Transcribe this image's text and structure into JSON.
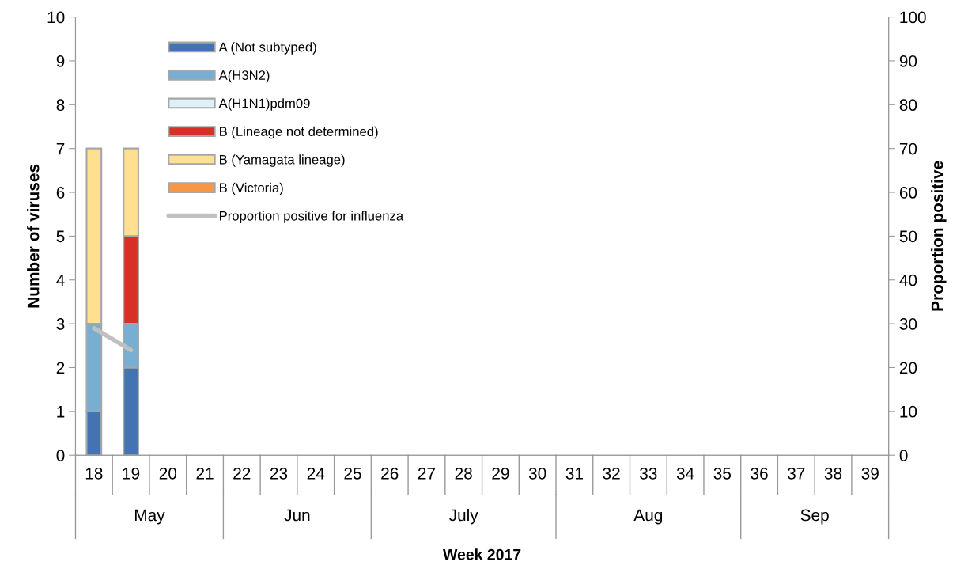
{
  "chart_data": {
    "type": "bar",
    "stacked": true,
    "xlabel": "Week 2017",
    "ylabel": "Number of viruses",
    "y2label": "Proportion positive",
    "categories": [
      "18",
      "19",
      "20",
      "21",
      "22",
      "23",
      "24",
      "25",
      "26",
      "27",
      "28",
      "29",
      "30",
      "31",
      "32",
      "33",
      "34",
      "35",
      "36",
      "37",
      "38",
      "39"
    ],
    "series": [
      {
        "name": "A (Not subtyped)",
        "color": "#4473b4",
        "values": [
          1,
          2,
          0,
          0,
          0,
          0,
          0,
          0,
          0,
          0,
          0,
          0,
          0,
          0,
          0,
          0,
          0,
          0,
          0,
          0,
          0,
          0
        ]
      },
      {
        "name": "A(H3N2)",
        "color": "#78aed2",
        "values": [
          2,
          1,
          0,
          0,
          0,
          0,
          0,
          0,
          0,
          0,
          0,
          0,
          0,
          0,
          0,
          0,
          0,
          0,
          0,
          0,
          0,
          0
        ]
      },
      {
        "name": "A(H1N1)pdm09",
        "color": "#def1f8",
        "values": [
          0,
          0,
          0,
          0,
          0,
          0,
          0,
          0,
          0,
          0,
          0,
          0,
          0,
          0,
          0,
          0,
          0,
          0,
          0,
          0,
          0,
          0
        ]
      },
      {
        "name": "B (Lineage not determined)",
        "color": "#d73027",
        "values": [
          0,
          2,
          0,
          0,
          0,
          0,
          0,
          0,
          0,
          0,
          0,
          0,
          0,
          0,
          0,
          0,
          0,
          0,
          0,
          0,
          0,
          0
        ]
      },
      {
        "name": "B (Yamagata lineage)",
        "color": "#fee090",
        "values": [
          4,
          2,
          0,
          0,
          0,
          0,
          0,
          0,
          0,
          0,
          0,
          0,
          0,
          0,
          0,
          0,
          0,
          0,
          0,
          0,
          0,
          0
        ]
      },
      {
        "name": "B (Victoria)",
        "color": "#f79646",
        "values": [
          0,
          0,
          0,
          0,
          0,
          0,
          0,
          0,
          0,
          0,
          0,
          0,
          0,
          0,
          0,
          0,
          0,
          0,
          0,
          0,
          0,
          0
        ]
      },
      {
        "name": "Proportion positive for influenza",
        "type": "line",
        "axis": "y2",
        "color": "#c0c0c0",
        "values": [
          29,
          24,
          null,
          null,
          null,
          null,
          null,
          null,
          null,
          null,
          null,
          null,
          null,
          null,
          null,
          null,
          null,
          null,
          null,
          null,
          null,
          null
        ]
      }
    ],
    "ylim": [
      0,
      10
    ],
    "yticks": [
      0,
      1,
      2,
      3,
      4,
      5,
      6,
      7,
      8,
      9,
      10
    ],
    "y2lim": [
      0,
      100
    ],
    "y2ticks": [
      0,
      10,
      20,
      30,
      40,
      50,
      60,
      70,
      80,
      90,
      100
    ],
    "annotations": [
      "May",
      "Jun",
      "July",
      "Aug",
      "Sep"
    ],
    "legend": "top left",
    "grid": false
  }
}
